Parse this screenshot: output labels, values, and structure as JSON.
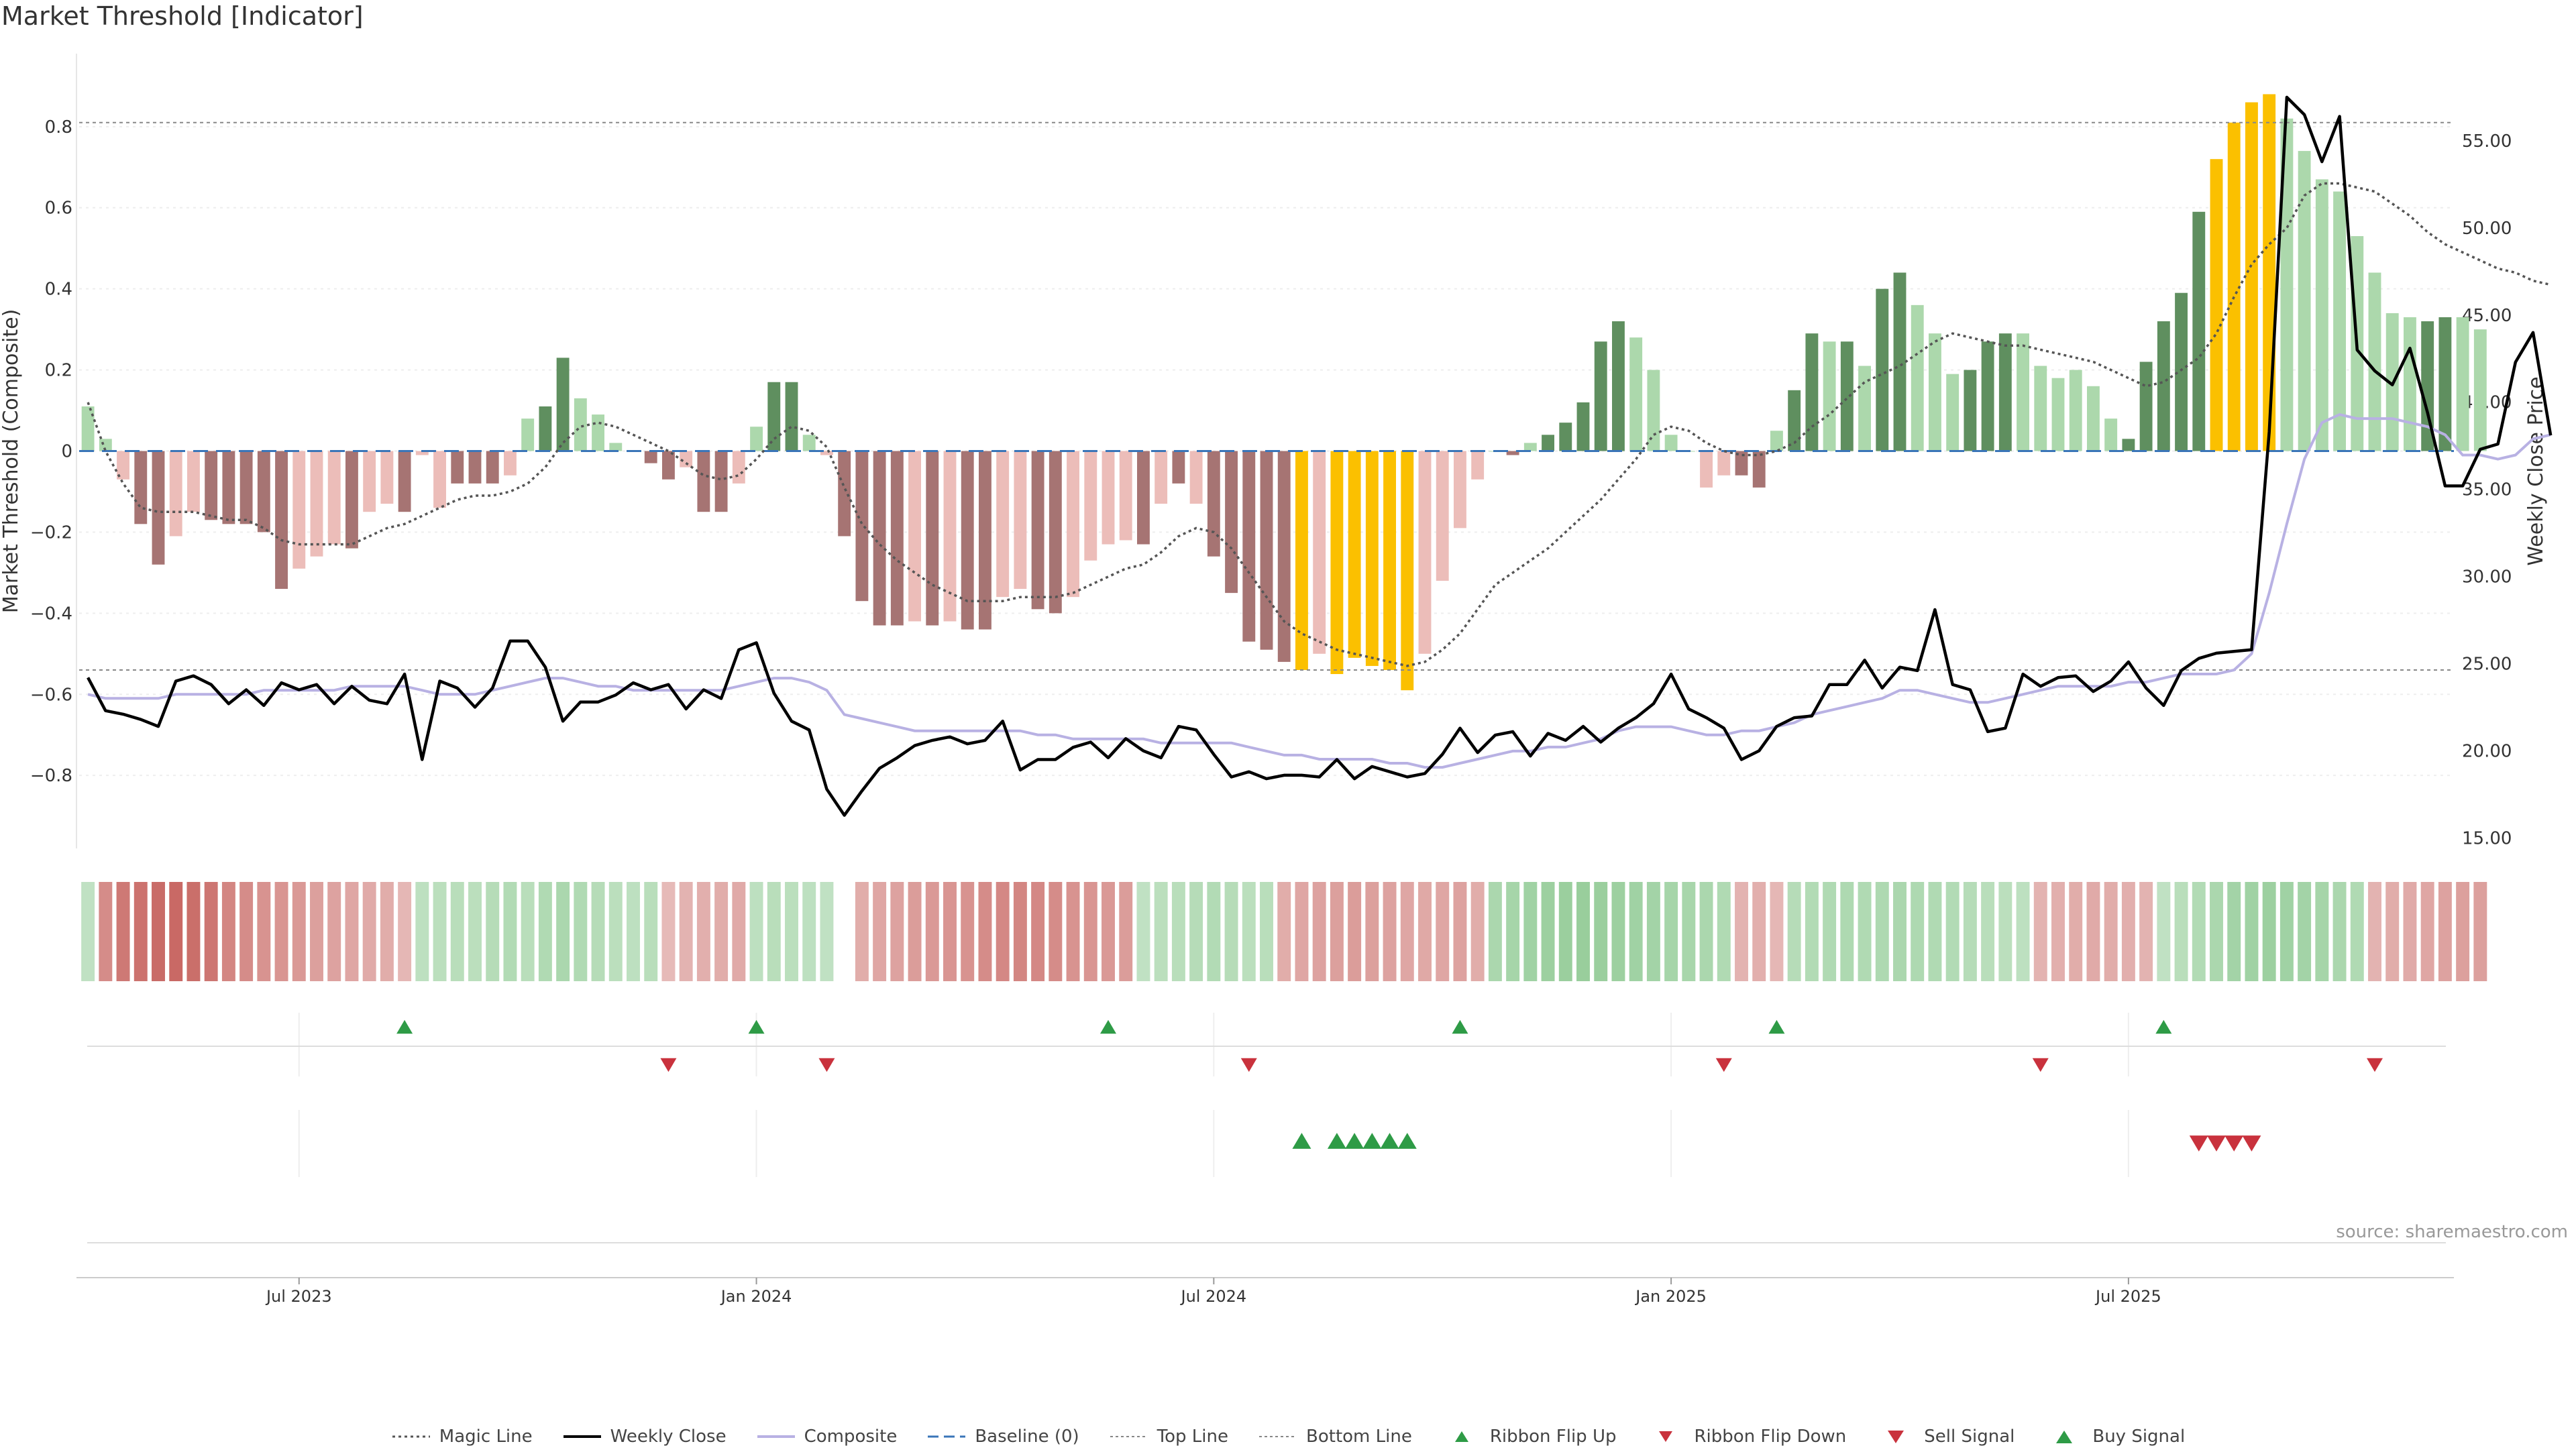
{
  "title": "Market Threshold [Indicator]",
  "source": "source: sharemaestro.com",
  "colors": {
    "bar_strong_green": "#5f8f5f",
    "bar_light_green": "#acd8ac",
    "bar_strong_red": "#a67473",
    "bar_light_red": "#ecbdb9",
    "bar_yellow": "#fbc000",
    "weekly_close": "#000000",
    "magic_line": "#555555",
    "composite": "#b8b1e3",
    "baseline": "#3a75b8",
    "threshold": "#888888",
    "ribbon_up": "#2e9b46",
    "ribbon_down": "#c9323d"
  },
  "chart_data": {
    "type": "bar",
    "x_tick_labels": [
      "Jul 2023",
      "Jan 2024",
      "Jul 2024",
      "Jan 2025",
      "Jul 2025"
    ],
    "x_tick_weeks": [
      12,
      38,
      64,
      90,
      116
    ],
    "week_count": 135,
    "left_axis": {
      "label": "Market Threshold (Composite)",
      "ticks": [
        0.8,
        0.6,
        0.4,
        0.2,
        0,
        -0.2,
        -0.4,
        -0.6,
        -0.8
      ],
      "tick_labels": [
        "0.8",
        "0.6",
        "0.4",
        "0.2",
        "0",
        "−0.2",
        "−0.4",
        "−0.6",
        "−0.8"
      ],
      "ylim": [
        -0.98,
        0.98
      ]
    },
    "right_axis": {
      "label": "Weekly Close Price",
      "ticks": [
        55,
        50,
        45,
        40,
        35,
        30,
        25,
        20,
        15
      ],
      "tick_labels": [
        "55.00",
        "50.00",
        "45.00",
        "40.00",
        "35.00",
        "30.00",
        "25.00",
        "20.00",
        "15.00"
      ],
      "ylim": [
        14.4,
        60
      ]
    },
    "top_line": 0.81,
    "bottom_line": -0.54,
    "composite_bars": [
      0.11,
      0.03,
      -0.07,
      -0.18,
      -0.28,
      -0.21,
      -0.15,
      -0.17,
      -0.18,
      -0.18,
      -0.2,
      -0.34,
      -0.29,
      -0.26,
      -0.23,
      -0.24,
      -0.15,
      -0.13,
      -0.15,
      -0.01,
      -0.14,
      -0.08,
      -0.08,
      -0.08,
      -0.06,
      0.08,
      0.11,
      0.23,
      0.13,
      0.09,
      0.02,
      0.0,
      -0.03,
      -0.07,
      -0.04,
      -0.15,
      -0.15,
      -0.08,
      0.06,
      0.17,
      0.17,
      0.04,
      -0.01,
      -0.21,
      -0.37,
      -0.43,
      -0.43,
      -0.42,
      -0.43,
      -0.42,
      -0.44,
      -0.44,
      -0.36,
      -0.34,
      -0.39,
      -0.4,
      -0.36,
      -0.27,
      -0.23,
      -0.22,
      -0.23,
      -0.13,
      -0.08,
      -0.13,
      -0.26,
      -0.35,
      -0.47,
      -0.49,
      -0.52,
      -0.54,
      -0.5,
      -0.55,
      -0.51,
      -0.53,
      -0.54,
      -0.59,
      -0.5,
      -0.32,
      -0.19,
      -0.07,
      0.0,
      -0.01,
      0.02,
      0.04,
      0.07,
      0.12,
      0.27,
      0.32,
      0.28,
      0.2,
      0.04,
      0.0,
      -0.09,
      -0.06,
      -0.06,
      -0.09,
      0.05,
      0.15,
      0.29,
      0.27,
      0.27,
      0.21,
      0.4,
      0.44,
      0.36,
      0.29,
      0.19,
      0.2,
      0.27,
      0.29,
      0.29,
      0.21,
      0.18,
      0.2,
      0.16,
      0.08,
      0.03,
      0.22,
      0.32,
      0.39,
      0.59,
      0.72,
      0.81,
      0.86,
      0.88,
      0.82,
      0.74,
      0.67,
      0.64,
      0.53,
      0.44,
      0.34,
      0.33,
      0.32,
      0.33,
      0.33,
      0.3
    ],
    "bar_categories": [
      "L",
      "L",
      "P",
      "R",
      "R",
      "P",
      "P",
      "R",
      "R",
      "R",
      "R",
      "R",
      "P",
      "P",
      "P",
      "R",
      "P",
      "P",
      "R",
      "P",
      "P",
      "R",
      "R",
      "R",
      "P",
      "L",
      "G",
      "G",
      "L",
      "L",
      "L",
      "L",
      "R",
      "R",
      "P",
      "R",
      "R",
      "P",
      "L",
      "G",
      "G",
      "L",
      "P",
      "R",
      "R",
      "R",
      "R",
      "P",
      "R",
      "P",
      "R",
      "R",
      "P",
      "P",
      "R",
      "R",
      "P",
      "P",
      "P",
      "P",
      "R",
      "P",
      "R",
      "P",
      "R",
      "R",
      "R",
      "R",
      "R",
      "Y",
      "P",
      "Y",
      "Y",
      "Y",
      "Y",
      "Y",
      "P",
      "P",
      "P",
      "P",
      "L",
      "R",
      "L",
      "G",
      "G",
      "G",
      "G",
      "G",
      "L",
      "L",
      "L",
      "L",
      "P",
      "P",
      "R",
      "R",
      "L",
      "G",
      "G",
      "L",
      "G",
      "L",
      "G",
      "G",
      "L",
      "L",
      "L",
      "G",
      "G",
      "G",
      "L",
      "L",
      "L",
      "L",
      "L",
      "L",
      "G",
      "G",
      "G",
      "G",
      "G",
      "Y",
      "Y",
      "Y",
      "Y",
      "L",
      "L",
      "L",
      "L",
      "L",
      "L",
      "L",
      "L",
      "G",
      "G",
      "L"
    ],
    "weekly_close": [
      24.2,
      22.3,
      22.1,
      21.8,
      21.4,
      24.0,
      24.3,
      23.8,
      22.7,
      23.5,
      22.6,
      23.9,
      23.5,
      23.8,
      22.7,
      23.7,
      22.9,
      22.7,
      24.4,
      19.5,
      24.0,
      23.6,
      22.5,
      23.6,
      26.3,
      26.3,
      24.8,
      21.7,
      22.8,
      22.8,
      23.2,
      23.9,
      23.5,
      23.8,
      22.4,
      23.5,
      23.0,
      25.8,
      26.2,
      23.3,
      21.7,
      21.2,
      17.8,
      16.3,
      17.7,
      19.0,
      19.6,
      20.3,
      20.6,
      20.8,
      20.4,
      20.6,
      21.7,
      18.9,
      19.5,
      19.5,
      20.2,
      20.5,
      19.6,
      20.7,
      20.0,
      19.6,
      21.4,
      21.2,
      19.8,
      18.5,
      18.8,
      18.4,
      18.6,
      18.6,
      18.5,
      19.5,
      18.4,
      19.1,
      18.8,
      18.5,
      18.7,
      19.8,
      21.3,
      19.9,
      20.9,
      21.1,
      19.7,
      21.0,
      20.6,
      21.4,
      20.5,
      21.3,
      21.9,
      22.7,
      24.4,
      22.4,
      21.9,
      21.3,
      19.5,
      20.0,
      21.4,
      21.9,
      22.0,
      23.8,
      23.8,
      25.2,
      23.6,
      24.8,
      24.6,
      28.1,
      23.8,
      23.5,
      21.1,
      21.3,
      24.4,
      23.7,
      24.2,
      24.3,
      23.4,
      24.0,
      25.1,
      23.6,
      22.6,
      24.6,
      25.3,
      25.6,
      25.7,
      25.8,
      38.3,
      57.5,
      56.5,
      53.8,
      56.4,
      43.0,
      41.8,
      41.0,
      43.1,
      39.4,
      35.2,
      35.2,
      37.3,
      37.6,
      42.3,
      44.0,
      38.1
    ],
    "composite_line": [
      -0.6,
      -0.61,
      -0.61,
      -0.61,
      -0.61,
      -0.6,
      -0.6,
      -0.6,
      -0.6,
      -0.6,
      -0.59,
      -0.59,
      -0.59,
      -0.59,
      -0.59,
      -0.58,
      -0.58,
      -0.58,
      -0.58,
      -0.59,
      -0.6,
      -0.6,
      -0.6,
      -0.59,
      -0.58,
      -0.57,
      -0.56,
      -0.56,
      -0.57,
      -0.58,
      -0.58,
      -0.59,
      -0.59,
      -0.59,
      -0.59,
      -0.59,
      -0.59,
      -0.58,
      -0.57,
      -0.56,
      -0.56,
      -0.57,
      -0.59,
      -0.65,
      -0.66,
      -0.67,
      -0.68,
      -0.69,
      -0.69,
      -0.69,
      -0.69,
      -0.69,
      -0.69,
      -0.69,
      -0.7,
      -0.7,
      -0.71,
      -0.71,
      -0.71,
      -0.71,
      -0.71,
      -0.72,
      -0.72,
      -0.72,
      -0.72,
      -0.72,
      -0.73,
      -0.74,
      -0.75,
      -0.75,
      -0.76,
      -0.76,
      -0.76,
      -0.76,
      -0.77,
      -0.77,
      -0.78,
      -0.78,
      -0.77,
      -0.76,
      -0.75,
      -0.74,
      -0.74,
      -0.73,
      -0.73,
      -0.72,
      -0.71,
      -0.69,
      -0.68,
      -0.68,
      -0.68,
      -0.69,
      -0.7,
      -0.7,
      -0.69,
      -0.69,
      -0.68,
      -0.67,
      -0.65,
      -0.64,
      -0.63,
      -0.62,
      -0.61,
      -0.59,
      -0.59,
      -0.6,
      -0.61,
      -0.62,
      -0.62,
      -0.61,
      -0.6,
      -0.59,
      -0.58,
      -0.58,
      -0.58,
      -0.58,
      -0.57,
      -0.57,
      -0.56,
      -0.55,
      -0.55,
      -0.55,
      -0.54,
      -0.5,
      -0.35,
      -0.18,
      -0.02,
      0.07,
      0.09,
      0.08,
      0.08,
      0.08,
      0.07,
      0.06,
      0.04,
      -0.01,
      -0.01,
      -0.02,
      -0.01,
      0.03,
      0.04
    ],
    "magic_line": [
      0.12,
      0.0,
      -0.08,
      -0.14,
      -0.15,
      -0.15,
      -0.15,
      -0.16,
      -0.17,
      -0.17,
      -0.19,
      -0.22,
      -0.23,
      -0.23,
      -0.23,
      -0.23,
      -0.21,
      -0.19,
      -0.18,
      -0.16,
      -0.14,
      -0.12,
      -0.11,
      -0.11,
      -0.1,
      -0.08,
      -0.04,
      0.02,
      0.06,
      0.07,
      0.06,
      0.04,
      0.02,
      0.0,
      -0.03,
      -0.06,
      -0.07,
      -0.06,
      -0.02,
      0.03,
      0.06,
      0.05,
      0.01,
      -0.09,
      -0.18,
      -0.23,
      -0.27,
      -0.3,
      -0.33,
      -0.35,
      -0.37,
      -0.37,
      -0.37,
      -0.36,
      -0.36,
      -0.36,
      -0.35,
      -0.33,
      -0.31,
      -0.29,
      -0.28,
      -0.25,
      -0.21,
      -0.19,
      -0.2,
      -0.24,
      -0.3,
      -0.36,
      -0.42,
      -0.45,
      -0.47,
      -0.49,
      -0.5,
      -0.51,
      -0.52,
      -0.53,
      -0.52,
      -0.49,
      -0.45,
      -0.39,
      -0.33,
      -0.3,
      -0.27,
      -0.24,
      -0.2,
      -0.16,
      -0.12,
      -0.07,
      -0.02,
      0.04,
      0.06,
      0.05,
      0.02,
      0.0,
      -0.01,
      -0.01,
      0.0,
      0.02,
      0.06,
      0.09,
      0.13,
      0.17,
      0.19,
      0.21,
      0.24,
      0.27,
      0.29,
      0.28,
      0.27,
      0.26,
      0.26,
      0.25,
      0.24,
      0.23,
      0.22,
      0.2,
      0.18,
      0.16,
      0.17,
      0.2,
      0.23,
      0.29,
      0.38,
      0.46,
      0.51,
      0.55,
      0.63,
      0.66,
      0.66,
      0.65,
      0.64,
      0.61,
      0.58,
      0.54,
      0.51,
      0.49,
      0.47,
      0.45,
      0.44,
      0.42,
      0.41
    ],
    "baseline": 0,
    "ribbon_cells": [
      0.25,
      -0.55,
      -0.7,
      -0.75,
      -0.8,
      -0.82,
      -0.78,
      -0.72,
      -0.6,
      -0.55,
      -0.5,
      -0.48,
      -0.45,
      -0.4,
      -0.38,
      -0.35,
      -0.32,
      -0.3,
      -0.22,
      0.28,
      0.3,
      0.32,
      0.3,
      0.35,
      0.38,
      0.32,
      0.4,
      0.45,
      0.4,
      0.35,
      0.3,
      0.28,
      0.32,
      -0.2,
      -0.25,
      -0.28,
      -0.3,
      -0.32,
      0.28,
      0.32,
      0.3,
      0.28,
      0.25,
      null,
      -0.3,
      -0.35,
      -0.38,
      -0.42,
      -0.45,
      -0.48,
      -0.5,
      -0.55,
      -0.58,
      -0.6,
      -0.58,
      -0.55,
      -0.5,
      -0.48,
      -0.45,
      -0.42,
      0.25,
      0.3,
      0.32,
      0.35,
      0.38,
      0.35,
      0.3,
      0.32,
      -0.3,
      -0.35,
      -0.38,
      -0.4,
      -0.42,
      -0.4,
      -0.38,
      -0.35,
      -0.33,
      -0.35,
      -0.38,
      -0.3,
      0.45,
      0.5,
      0.55,
      0.58,
      0.6,
      0.62,
      0.6,
      0.58,
      0.55,
      0.52,
      0.5,
      0.48,
      0.45,
      0.4,
      -0.25,
      -0.28,
      -0.22,
      0.35,
      0.38,
      0.4,
      0.42,
      0.4,
      0.42,
      0.45,
      0.42,
      0.4,
      0.38,
      0.35,
      0.32,
      0.3,
      0.28,
      -0.25,
      -0.28,
      -0.3,
      -0.32,
      -0.3,
      -0.28,
      -0.25,
      0.25,
      0.32,
      0.38,
      0.45,
      0.52,
      0.55,
      0.58,
      0.55,
      0.52,
      0.5,
      0.45,
      0.4,
      -0.25,
      -0.3,
      -0.32,
      -0.35,
      -0.38,
      -0.4,
      -0.4
    ],
    "ribbon_flip_up_weeks": [
      18,
      38,
      58,
      78,
      96,
      118
    ],
    "ribbon_flip_down_weeks": [
      33,
      42,
      66,
      93,
      111,
      130
    ],
    "buy_signal_weeks": [
      69,
      71,
      72,
      73,
      74,
      75
    ],
    "sell_signal_weeks": [
      120,
      121,
      122,
      123
    ],
    "legend": [
      {
        "key": "magic",
        "label": "Magic Line"
      },
      {
        "key": "weekly",
        "label": "Weekly Close"
      },
      {
        "key": "composite",
        "label": "Composite"
      },
      {
        "key": "baseline",
        "label": "Baseline (0)"
      },
      {
        "key": "top",
        "label": "Top Line"
      },
      {
        "key": "bottom",
        "label": "Bottom Line"
      },
      {
        "key": "flipup",
        "label": "Ribbon Flip Up"
      },
      {
        "key": "flipdown",
        "label": "Ribbon Flip Down"
      },
      {
        "key": "sell",
        "label": "Sell Signal"
      },
      {
        "key": "buy",
        "label": "Buy Signal"
      }
    ]
  }
}
